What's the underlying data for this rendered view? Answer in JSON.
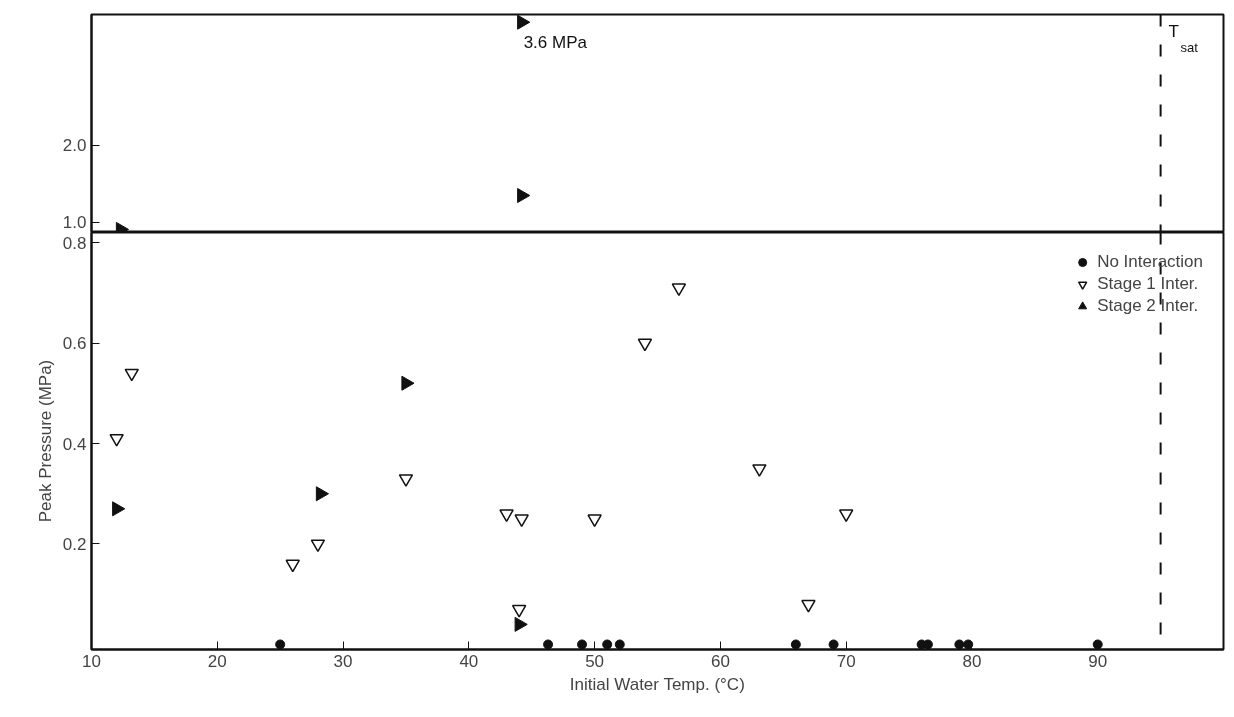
{
  "chart_data": [
    {
      "type": "scatter",
      "xlim": [
        10,
        100
      ],
      "ylim": [
        0.87,
        3.7
      ],
      "yticks": [
        {
          "value": 1.0,
          "label": "1.0"
        },
        {
          "value": 2.0,
          "label": "2.0"
        }
      ],
      "tick_labels": "y",
      "grid": false,
      "legend": false,
      "series": [
        {
          "color": "#111111",
          "marker": "triangle_right",
          "x": [
            12.3,
            44.2,
            44.2
          ],
          "values": [
            0.91,
            1.35,
            3.6
          ]
        }
      ],
      "ref_lines": [
        {
          "axis": "x",
          "value": 95,
          "label": "T$_{sat}$",
          "line_style": "dashed",
          "color": "#111111"
        }
      ],
      "annotations": [
        {
          "text": "3.6 MPa",
          "x": 44.2,
          "y": 3.6
        }
      ]
    },
    {
      "type": "scatter",
      "xlim": [
        10,
        100
      ],
      "xticks": [
        10,
        20,
        30,
        40,
        50,
        60,
        70,
        80,
        90
      ],
      "ylim": [
        -0.01,
        0.82
      ],
      "yticks": [
        {
          "value": 0.2,
          "label": "0.2"
        },
        {
          "value": 0.4,
          "label": "0.4"
        },
        {
          "value": 0.6,
          "label": "0.6"
        },
        {
          "value": 0.8,
          "label": "0.8"
        }
      ],
      "xlabel": "Initial Water Temp. (°C)",
      "ylabel": "Peak Pressure (MPa)",
      "grid": false,
      "legend": "top right",
      "series": [
        {
          "name": "No Interaction",
          "color": "#111111",
          "marker": "circle",
          "x": [
            25,
            46.3,
            49,
            51,
            52,
            66,
            69,
            76,
            76.5,
            79,
            79.7,
            90
          ],
          "values": [
            0,
            0,
            0,
            0,
            0,
            0,
            0,
            0,
            0,
            0,
            0,
            0
          ]
        },
        {
          "name": "Stage 1 Inter.",
          "color": "#111111",
          "marker": "triangle_down",
          "x": [
            12.0,
            13.2,
            26.0,
            28.0,
            35.0,
            43.0,
            44.2,
            50.0,
            44.0,
            54.0,
            56.7,
            63.1,
            70.0,
            67.0
          ],
          "values": [
            0.41,
            0.54,
            0.16,
            0.2,
            0.33,
            0.26,
            0.25,
            0.25,
            0.07,
            0.6,
            0.71,
            0.35,
            0.26,
            0.08
          ]
        },
        {
          "name": "Stage 2 Inter.",
          "color": "#111111",
          "marker": "triangle_right",
          "x": [
            12.0,
            28.2,
            35.0,
            44.0
          ],
          "values": [
            0.27,
            0.3,
            0.52,
            0.04
          ]
        }
      ],
      "ref_lines": [
        {
          "axis": "x",
          "value": 95,
          "label": null,
          "line_style": "dashed",
          "color": "#111111"
        }
      ]
    }
  ]
}
